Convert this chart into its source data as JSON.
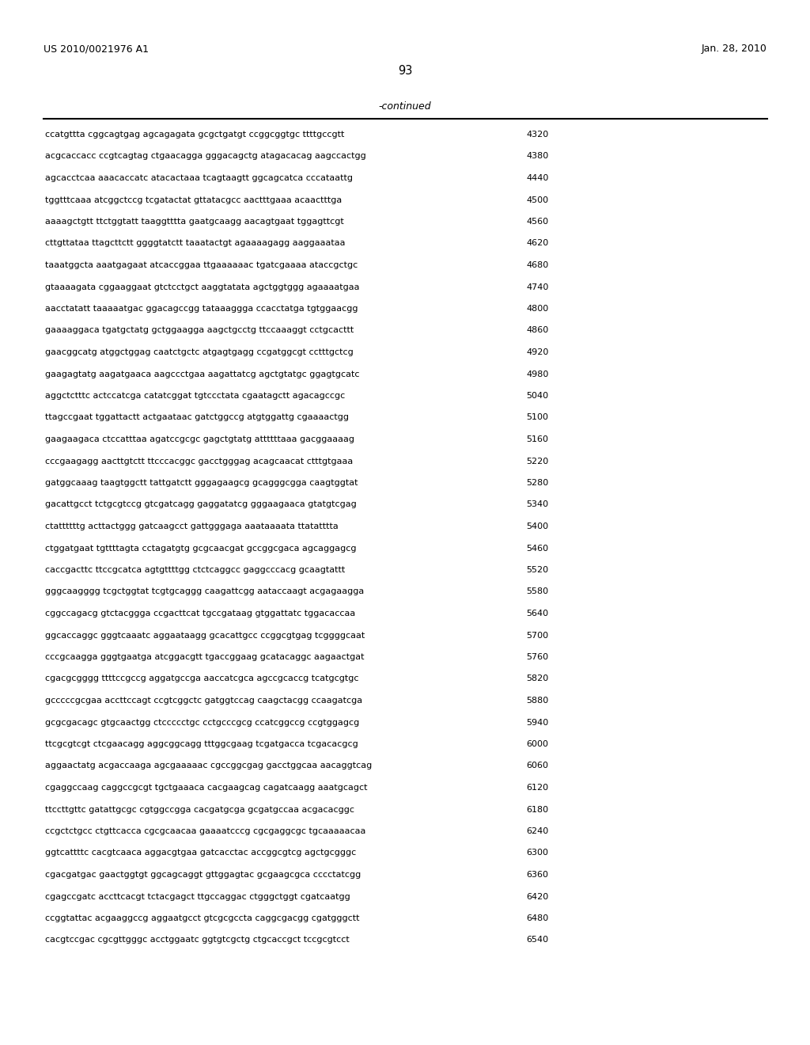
{
  "header_left": "US 2010/0021976 A1",
  "header_right": "Jan. 28, 2010",
  "page_number": "93",
  "continued_label": "-continued",
  "background_color": "#ffffff",
  "text_color": "#000000",
  "font_size": 8.0,
  "header_font_size": 9.0,
  "page_num_font_size": 10.5,
  "continued_font_size": 9.0,
  "sequence_lines": [
    [
      "ccatgttta cggcagtgag agcagagata gcgctgatgt ccggcggtgc ttttgccgtt",
      "4320"
    ],
    [
      "acgcaccacc ccgtcagtag ctgaacagga gggacagctg atagacacag aagccactgg",
      "4380"
    ],
    [
      "agcacctcaa aaacaccatc atacactaaa tcagtaagtt ggcagcatca cccataattg",
      "4440"
    ],
    [
      "tggtttcaaa atcggctccg tcgatactat gttatacgcc aactttgaaa acaactttga",
      "4500"
    ],
    [
      "aaaagctgtt ttctggtatt taaggtttta gaatgcaagg aacagtgaat tggagttcgt",
      "4560"
    ],
    [
      "cttgttataa ttagcttctt ggggtatctt taaatactgt agaaaagagg aaggaaataa",
      "4620"
    ],
    [
      "taaatggcta aaatgagaat atcaccggaa ttgaaaaaac tgatcgaaaa ataccgctgc",
      "4680"
    ],
    [
      "gtaaaagata cggaaggaat gtctcctgct aaggtatata agctggtggg agaaaatgaa",
      "4740"
    ],
    [
      "aacctatatt taaaaatgac ggacagccgg tataaaggga ccacctatga tgtggaacgg",
      "4800"
    ],
    [
      "gaaaaggaca tgatgctatg gctggaagga aagctgcctg ttccaaaggt cctgcacttt",
      "4860"
    ],
    [
      "gaacggcatg atggctggag caatctgctc atgagtgagg ccgatggcgt cctttgctcg",
      "4920"
    ],
    [
      "gaagagtatg aagatgaaca aagccctgaa aagattatcg agctgtatgc ggagtgcatc",
      "4980"
    ],
    [
      "aggctctttc actccatcga catatcggat tgtccctata cgaatagctt agacagccgc",
      "5040"
    ],
    [
      "ttagccgaat tggattactt actgaataac gatctggccg atgtggattg cgaaaactgg",
      "5100"
    ],
    [
      "gaagaagaca ctccatttaa agatccgcgc gagctgtatg attttttaaa gacggaaaag",
      "5160"
    ],
    [
      "cccgaagagg aacttgtctt ttcccacggc gacctgggag acagcaacat ctttgtgaaa",
      "5220"
    ],
    [
      "gatggcaaag taagtggctt tattgatctt gggagaagcg gcagggcgga caagtggtat",
      "5280"
    ],
    [
      "gacattgcct tctgcgtccg gtcgatcagg gaggatatcg gggaagaaca gtatgtcgag",
      "5340"
    ],
    [
      "ctattttttg acttactggg gatcaagcct gattgggaga aaataaaata ttatatttta",
      "5400"
    ],
    [
      "ctggatgaat tgttttagta cctagatgtg gcgcaacgat gccggcgaca agcaggagcg",
      "5460"
    ],
    [
      "caccgacttc ttccgcatca agtgttttgg ctctcaggcc gaggcccacg gcaagtattt",
      "5520"
    ],
    [
      "gggcaagggg tcgctggtat tcgtgcaggg caagattcgg aataccaagt acgagaagga",
      "5580"
    ],
    [
      "cggccagacg gtctacggga ccgacttcat tgccgataag gtggattatc tggacaccaa",
      "5640"
    ],
    [
      "ggcaccaggc gggtcaaatc aggaataagg gcacattgcc ccggcgtgag tcggggcaat",
      "5700"
    ],
    [
      "cccgcaagga gggtgaatga atcggacgtt tgaccggaag gcatacaggc aagaactgat",
      "5760"
    ],
    [
      "cgacgcgggg ttttccgccg aggatgccga aaccatcgca agccgcaccg tcatgcgtgc",
      "5820"
    ],
    [
      "gcccccgcgaa accttccagt ccgtcggctc gatggtccag caagctacgg ccaagatcga",
      "5880"
    ],
    [
      "gcgcgacagc gtgcaactgg ctccccctgc cctgcccgcg ccatcggccg ccgtggagcg",
      "5940"
    ],
    [
      "ttcgcgtcgt ctcgaacagg aggcggcagg tttggcgaag tcgatgacca tcgacacgcg",
      "6000"
    ],
    [
      "aggaactatg acgaccaaga agcgaaaaac cgccggcgag gacctggcaa aacaggtcag",
      "6060"
    ],
    [
      "cgaggccaag caggccgcgt tgctgaaaca cacgaagcag cagatcaagg aaatgcagct",
      "6120"
    ],
    [
      "ttccttgttc gatattgcgc cgtggccgga cacgatgcga gcgatgccaa acgacacggc",
      "6180"
    ],
    [
      "ccgctctgcc ctgttcacca cgcgcaacaa gaaaatcccg cgcgaggcgc tgcaaaaacaa",
      "6240"
    ],
    [
      "ggtcattttc cacgtcaaca aggacgtgaa gatcacctac accggcgtcg agctgcgggc",
      "6300"
    ],
    [
      "cgacgatgac gaactggtgt ggcagcaggt gttggagtac gcgaagcgca cccctatcgg",
      "6360"
    ],
    [
      "cgagccgatc accttcacgt tctacgagct ttgccaggac ctgggctggt cgatcaatgg",
      "6420"
    ],
    [
      "ccggtattac acgaaggccg aggaatgcct gtcgcgccta caggcgacgg cgatgggctt",
      "6480"
    ],
    [
      "cacgtccgac cgcgttgggc acctggaatc ggtgtcgctg ctgcaccgct tccgcgtcct",
      "6540"
    ]
  ]
}
